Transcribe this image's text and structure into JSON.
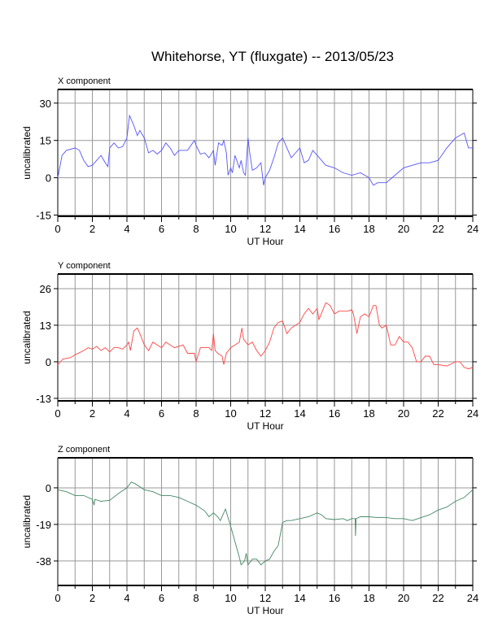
{
  "chart_data": [
    {
      "type": "line",
      "title": "Whitehorse, YT (fluxgate) -- 2013/05/23",
      "panel_title": "X component",
      "xlabel": "UT Hour",
      "ylabel": "uncalibrated",
      "xlim": [
        0,
        24
      ],
      "ylim": [
        -15.5,
        35.5
      ],
      "xticks": [
        0,
        2,
        4,
        6,
        8,
        10,
        12,
        14,
        16,
        18,
        20,
        22,
        24
      ],
      "yticks": [
        -15,
        0,
        15,
        30
      ],
      "grid": true,
      "color": "#5555ff",
      "x": [
        0,
        0.25,
        0.5,
        1,
        1.25,
        1.5,
        1.75,
        2,
        2.5,
        2.75,
        2.9,
        3,
        3.25,
        3.5,
        3.75,
        4,
        4.15,
        4.4,
        4.6,
        4.75,
        5,
        5.25,
        5.5,
        5.75,
        6,
        6.25,
        6.5,
        6.75,
        7,
        7.5,
        7.9,
        8,
        8.25,
        8.5,
        8.75,
        9,
        9.1,
        9.3,
        9.5,
        9.6,
        9.75,
        9.85,
        10,
        10.1,
        10.25,
        10.5,
        10.6,
        10.75,
        10.85,
        11,
        11.1,
        11.25,
        11.5,
        11.75,
        11.9,
        12,
        12.25,
        12.5,
        12.75,
        13,
        13.25,
        13.5,
        13.75,
        14,
        14.25,
        14.5,
        14.75,
        15,
        15.5,
        16,
        16.5,
        17,
        17.5,
        18,
        18.25,
        18.5,
        18.75,
        19,
        19.5,
        20,
        20.5,
        21,
        21.5,
        22,
        22.5,
        23,
        23.5,
        23.75,
        24
      ],
      "values": [
        0,
        9,
        11,
        12,
        11,
        7,
        4.5,
        5,
        9,
        6,
        4.5,
        12,
        14,
        12,
        12.5,
        16,
        25,
        21,
        17,
        19,
        16,
        10,
        11,
        9.5,
        11,
        14,
        12,
        9,
        11,
        11,
        15,
        13,
        9.5,
        10,
        8,
        11,
        5,
        14,
        13,
        15,
        10,
        1,
        4,
        2,
        9,
        4,
        7,
        2,
        1,
        16,
        10,
        3,
        4,
        6,
        -3,
        0,
        3,
        8,
        14,
        16,
        12,
        8,
        10,
        12,
        6,
        7,
        11,
        9,
        5,
        4,
        2,
        1,
        2,
        0,
        -3,
        -2,
        -2,
        -2,
        1,
        4,
        5,
        6,
        6,
        7,
        12,
        16,
        18,
        12,
        12
      ]
    },
    {
      "type": "line",
      "panel_title": "Y component",
      "xlabel": "UT Hour",
      "ylabel": "uncalibrated",
      "xlim": [
        0,
        24
      ],
      "ylim": [
        -13.9,
        31.2
      ],
      "xticks": [
        0,
        2,
        4,
        6,
        8,
        10,
        12,
        14,
        16,
        18,
        20,
        22,
        24
      ],
      "yticks": [
        -13,
        0,
        13,
        26
      ],
      "grid": true,
      "color": "#ff4444",
      "x": [
        0,
        0.3,
        0.75,
        1,
        1.5,
        1.75,
        2,
        2.25,
        2.5,
        2.75,
        3,
        3.25,
        3.5,
        3.75,
        4,
        4.1,
        4.2,
        4.4,
        4.6,
        4.75,
        5,
        5.25,
        5.5,
        5.75,
        6,
        6.25,
        6.5,
        6.75,
        7,
        7.25,
        7.5,
        7.9,
        8,
        8.25,
        8.5,
        8.75,
        8.9,
        9,
        9.1,
        9.25,
        9.5,
        9.6,
        9.75,
        10,
        10.25,
        10.5,
        10.65,
        10.75,
        11,
        11.25,
        11.5,
        11.75,
        12,
        12.25,
        12.5,
        12.75,
        13,
        13.25,
        13.5,
        13.75,
        14,
        14.25,
        14.5,
        14.75,
        15,
        15.1,
        15.5,
        15.75,
        16,
        16.25,
        16.5,
        16.75,
        17,
        17.1,
        17.3,
        17.5,
        17.75,
        18,
        18.25,
        18.4,
        18.6,
        18.75,
        19,
        19.25,
        19.5,
        19.75,
        20,
        20.25,
        20.5,
        20.75,
        21,
        21.25,
        21.5,
        21.75,
        22,
        22.5,
        23,
        23.25,
        23.5,
        23.75,
        24
      ],
      "values": [
        -1,
        1,
        1.5,
        2.5,
        4,
        5,
        4.5,
        5.5,
        4,
        5,
        3.5,
        5,
        5,
        4.5,
        6,
        7,
        4,
        11,
        12,
        10,
        6,
        4,
        7,
        6,
        5,
        7,
        6,
        5,
        5.5,
        6,
        3,
        3,
        0,
        5,
        5,
        5,
        4,
        10,
        4,
        3,
        2,
        -1,
        3,
        5,
        6,
        7,
        12,
        8,
        6,
        7,
        4,
        2,
        4,
        7,
        12,
        14,
        14.5,
        10,
        12,
        13,
        14,
        17,
        19,
        17,
        19,
        15,
        21,
        20,
        17,
        18,
        18,
        18,
        18.5,
        17,
        10,
        16,
        17,
        16,
        20,
        20,
        13,
        12,
        13,
        6,
        6,
        9,
        7,
        7,
        5,
        0,
        0,
        2,
        2,
        -1,
        -1,
        -1.5,
        0,
        0,
        -2,
        -2.5,
        -2
      ]
    },
    {
      "type": "line",
      "panel_title": "Z component",
      "xlabel": "UT Hour",
      "ylabel": "uncalibrated",
      "xlim": [
        0,
        24
      ],
      "ylim": [
        -50.7,
        15.6
      ],
      "xticks": [
        0,
        2,
        4,
        6,
        8,
        10,
        12,
        14,
        16,
        18,
        20,
        22,
        24
      ],
      "yticks": [
        -38,
        -19,
        0
      ],
      "grid": true,
      "color": "#448866",
      "x": [
        0,
        0.5,
        1,
        1.5,
        2,
        2.1,
        2.15,
        2.5,
        3,
        3.5,
        4,
        4.25,
        4.5,
        5,
        5.5,
        6,
        6.5,
        7,
        7.5,
        8,
        8.5,
        8.75,
        9,
        9.25,
        9.4,
        9.7,
        10,
        10.25,
        10.5,
        10.6,
        10.8,
        10.9,
        11,
        11.25,
        11.5,
        11.75,
        12,
        12.25,
        12.5,
        12.75,
        13,
        13.25,
        13.5,
        14,
        14.5,
        15,
        15.25,
        15.5,
        16,
        16.5,
        16.75,
        17,
        17.2,
        17.22,
        17.25,
        17.5,
        18,
        18.5,
        19,
        19.5,
        20,
        20.5,
        21,
        21.5,
        22,
        22.5,
        23,
        23.5,
        24
      ],
      "values": [
        -1,
        -2,
        -4,
        -4,
        -6,
        -9,
        -6,
        -7,
        -6.5,
        -3,
        0,
        3,
        2,
        -1,
        -2,
        -4,
        -4,
        -5,
        -7,
        -9,
        -12,
        -15,
        -13,
        -15,
        -17,
        -11,
        -20,
        -28,
        -36,
        -40,
        -38,
        -34,
        -40,
        -37,
        -37,
        -40,
        -38,
        -37,
        -33,
        -30,
        -18,
        -17,
        -17,
        -16,
        -15,
        -13,
        -14,
        -16,
        -16.5,
        -16,
        -17,
        -16,
        -16,
        -25,
        -16,
        -15,
        -15,
        -15.5,
        -15.5,
        -16,
        -16,
        -17,
        -15.5,
        -14,
        -11.5,
        -10,
        -7,
        -5,
        -1
      ]
    }
  ]
}
